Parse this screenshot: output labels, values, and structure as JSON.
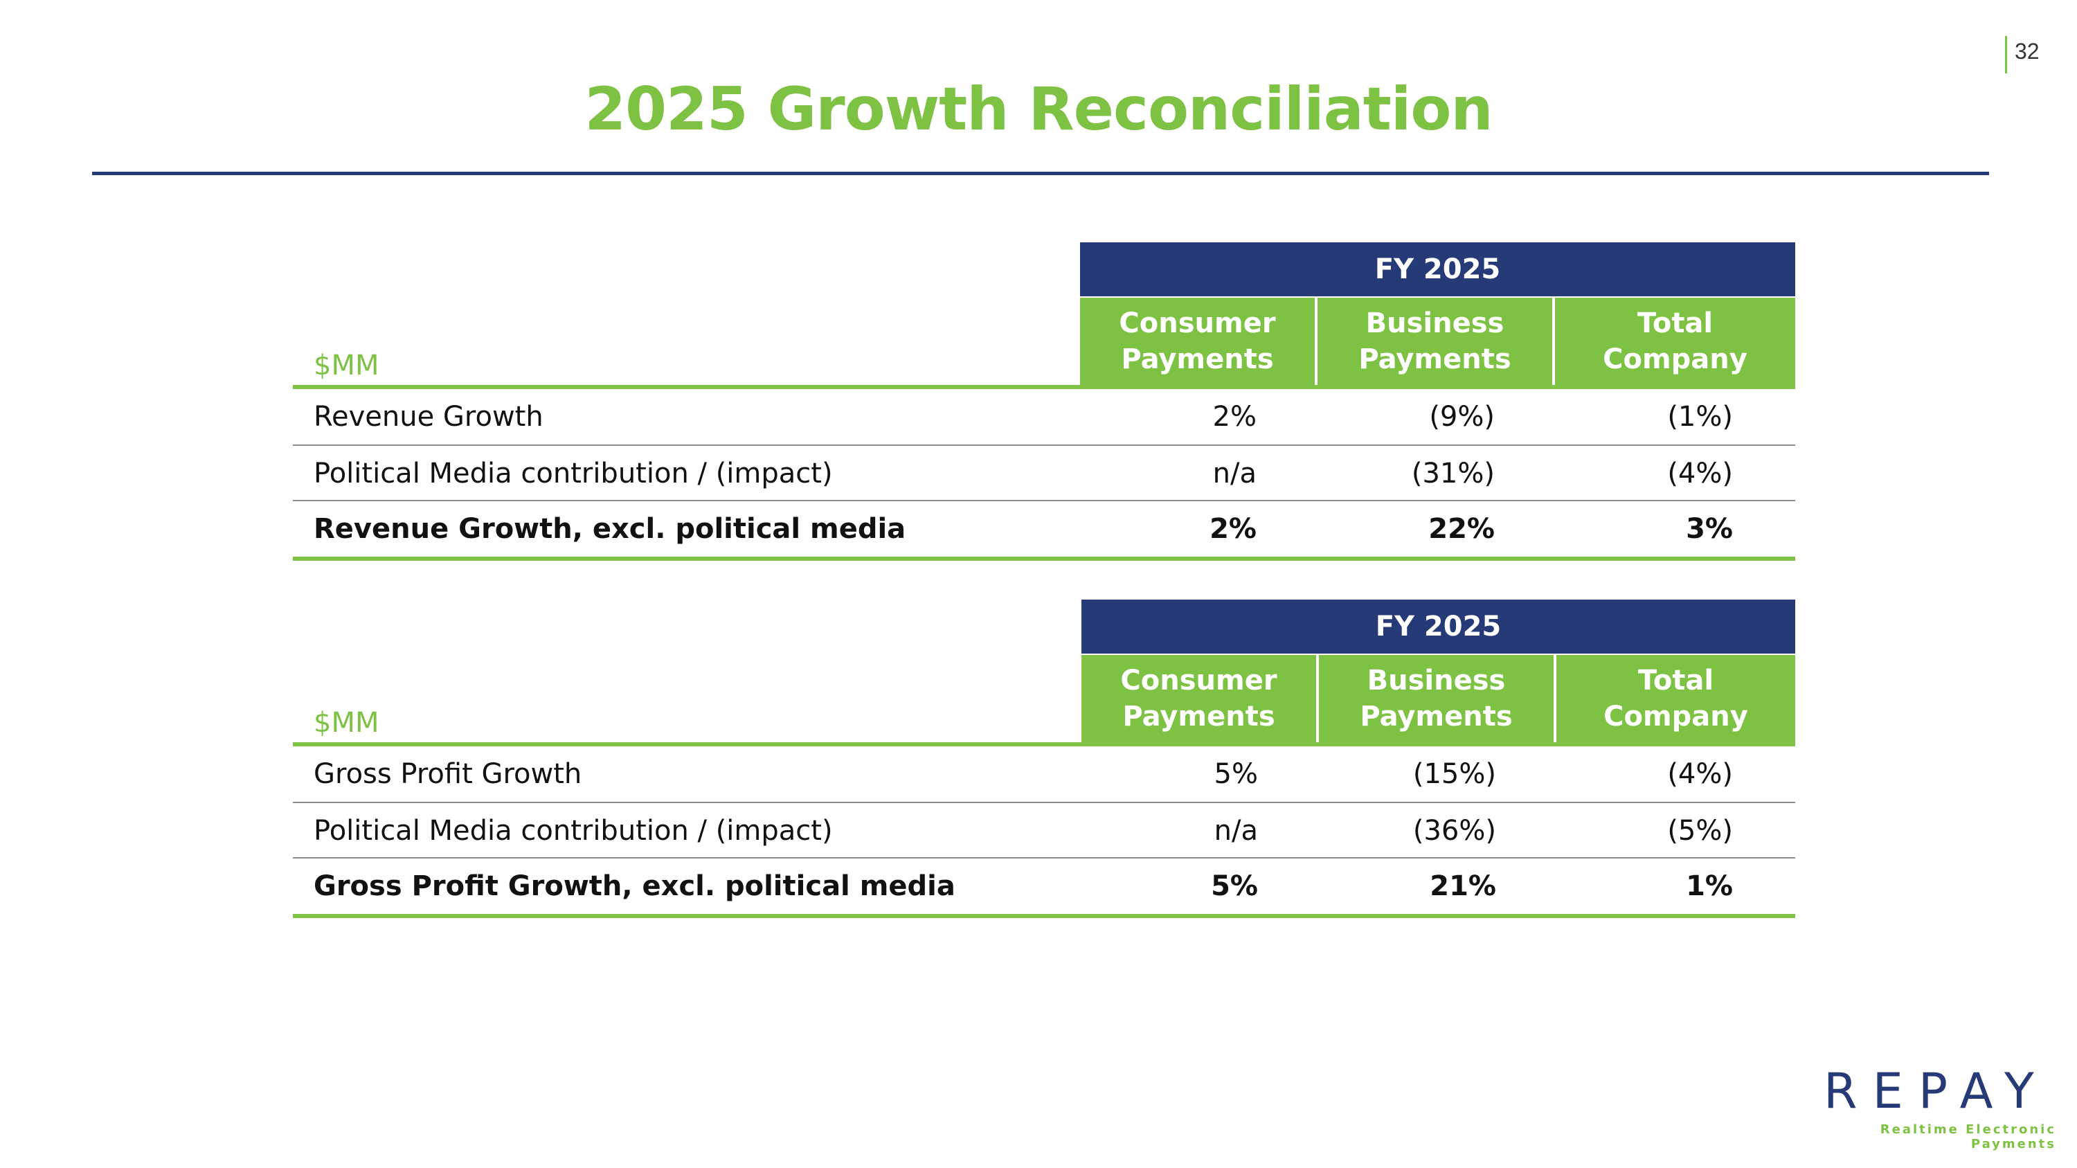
{
  "page_number": "32",
  "title": "2025 Growth Reconciliation",
  "tables": [
    {
      "period": "FY 2025",
      "unit": "$MM",
      "columns": [
        {
          "line1": "Consumer",
          "line2": "Payments"
        },
        {
          "line1": "Business",
          "line2": "Payments"
        },
        {
          "line1": "Total",
          "line2": "Company"
        }
      ],
      "rows": [
        {
          "label": "Revenue Growth",
          "values": [
            "2%",
            "(9%)",
            "(1%)"
          ],
          "bold": false
        },
        {
          "label": "Political Media contribution / (impact)",
          "values": [
            "n/a",
            "(31%)",
            "(4%)"
          ],
          "bold": false
        },
        {
          "label": "Revenue Growth, excl. political media",
          "values": [
            "2%",
            "22%",
            "3%"
          ],
          "bold": true
        }
      ]
    },
    {
      "period": "FY 2025",
      "unit": "$MM",
      "columns": [
        {
          "line1": "Consumer",
          "line2": "Payments"
        },
        {
          "line1": "Business",
          "line2": "Payments"
        },
        {
          "line1": "Total",
          "line2": "Company"
        }
      ],
      "rows": [
        {
          "label": "Gross Profit Growth",
          "values": [
            "5%",
            "(15%)",
            "(4%)"
          ],
          "bold": false
        },
        {
          "label": "Political Media contribution / (impact)",
          "values": [
            "n/a",
            "(36%)",
            "(5%)"
          ],
          "bold": false
        },
        {
          "label": "Gross Profit Growth, excl. political media",
          "values": [
            "5%",
            "21%",
            "1%"
          ],
          "bold": true
        }
      ]
    }
  ],
  "logo": {
    "wordmark": "REPAY",
    "tagline": "Realtime Electronic Payments"
  },
  "colors": {
    "brand_green": "#7dc242",
    "brand_navy": "#263a78"
  }
}
